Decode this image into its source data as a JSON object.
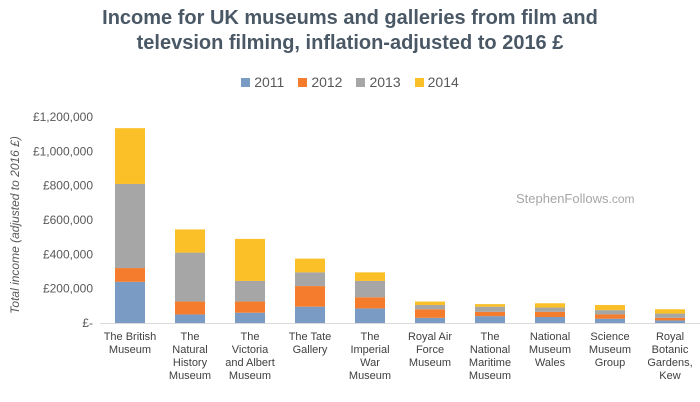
{
  "chart_data": {
    "type": "bar",
    "stacked": true,
    "title_lines": [
      "Income for UK museums and galleries from film and",
      "televsion filming, inflation-adjusted to 2016 £"
    ],
    "ylabel": "Total income (adjusted to 2016 £)",
    "xlabel": "",
    "ylim": [
      0,
      1200000
    ],
    "ytick_values": [
      0,
      200000,
      400000,
      600000,
      800000,
      1000000,
      1200000
    ],
    "ytick_labels": [
      "£-",
      "£200,000",
      "£400,000",
      "£600,000",
      "£800,000",
      "£1,000,000",
      "£1,200,000"
    ],
    "categories": [
      [
        "The British",
        "Museum"
      ],
      [
        "The",
        "Natural",
        "History",
        "Museum"
      ],
      [
        "The",
        "Victoria",
        "and Albert",
        "Museum"
      ],
      [
        "The Tate",
        "Gallery"
      ],
      [
        "The",
        "Imperial",
        "War",
        "Museum"
      ],
      [
        "Royal Air",
        "Force",
        "Museum"
      ],
      [
        "The",
        "National",
        "Maritime",
        "Museum"
      ],
      [
        "National",
        "Museum",
        "Wales"
      ],
      [
        "Science",
        "Museum",
        "Group"
      ],
      [
        "Royal",
        "Botanic",
        "Gardens,",
        "Kew"
      ]
    ],
    "legend_position": "top",
    "series": [
      {
        "name": "2011",
        "color": "#7a9cc4",
        "values": [
          240000,
          50000,
          60000,
          95000,
          85000,
          30000,
          40000,
          35000,
          25000,
          15000
        ]
      },
      {
        "name": "2012",
        "color": "#f47c2c",
        "values": [
          80000,
          75000,
          65000,
          120000,
          65000,
          50000,
          25000,
          30000,
          25000,
          15000
        ]
      },
      {
        "name": "2013",
        "color": "#a6a6a6",
        "values": [
          490000,
          285000,
          120000,
          80000,
          95000,
          25000,
          30000,
          25000,
          25000,
          25000
        ]
      },
      {
        "name": "2014",
        "color": "#fbbf28",
        "values": [
          325000,
          135000,
          245000,
          80000,
          50000,
          20000,
          15000,
          25000,
          30000,
          25000
        ]
      }
    ]
  },
  "watermark": {
    "main": "StephenFollows",
    "suffix": ".com"
  }
}
